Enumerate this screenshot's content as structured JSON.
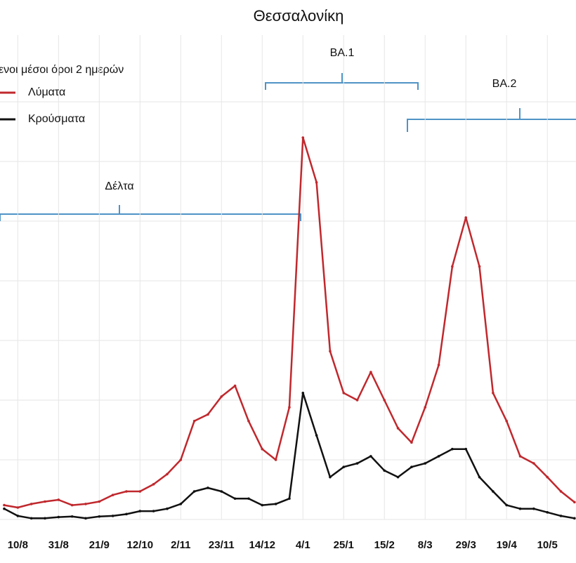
{
  "chart_data": {
    "type": "line",
    "title": "Θεσσαλονίκη",
    "legend_title": "ενοι μέσοι όροι 2 ημερών",
    "categories": [
      null,
      "10/8",
      null,
      null,
      "31/8",
      null,
      null,
      "21/9",
      null,
      null,
      "12/10",
      null,
      null,
      "2/11",
      null,
      null,
      "23/11",
      null,
      null,
      "14/12",
      null,
      null,
      "4/1",
      null,
      null,
      "25/1",
      null,
      null,
      "15/2",
      null,
      null,
      "8/3",
      null,
      null,
      "29/3",
      null,
      null,
      "19/4",
      null,
      null,
      "10/5",
      null,
      null
    ],
    "series": [
      {
        "name": "Λύματα",
        "color": "#c0282d",
        "values": [
          0.24,
          0.2,
          0.26,
          0.3,
          0.33,
          0.24,
          0.26,
          0.3,
          0.41,
          0.47,
          0.47,
          0.59,
          0.76,
          1.0,
          1.65,
          1.76,
          2.06,
          2.24,
          1.65,
          1.18,
          1.0,
          1.88,
          6.4,
          5.65,
          2.82,
          2.12,
          2.0,
          2.47,
          2.0,
          1.53,
          1.29,
          1.88,
          2.59,
          4.24,
          5.06,
          4.24,
          2.12,
          1.65,
          1.06,
          0.94,
          0.71,
          0.47,
          0.29
        ]
      },
      {
        "name": "Κρούσματα",
        "color": "#111111",
        "values": [
          0.18,
          0.06,
          0.02,
          0.02,
          0.04,
          0.05,
          0.02,
          0.05,
          0.06,
          0.09,
          0.14,
          0.14,
          0.18,
          0.26,
          0.47,
          0.53,
          0.47,
          0.35,
          0.35,
          0.24,
          0.26,
          0.35,
          2.12,
          1.41,
          0.71,
          0.88,
          0.94,
          1.06,
          0.82,
          0.71,
          0.88,
          0.94,
          1.06,
          1.18,
          1.18,
          0.71,
          0.47,
          0.24,
          0.18,
          0.18,
          0.12,
          0.06,
          0.02
        ]
      }
    ],
    "ylim": [
      0,
      8
    ],
    "grid": true,
    "annotations": [
      "Δέλτα",
      "BA.1",
      "BA.2"
    ]
  }
}
